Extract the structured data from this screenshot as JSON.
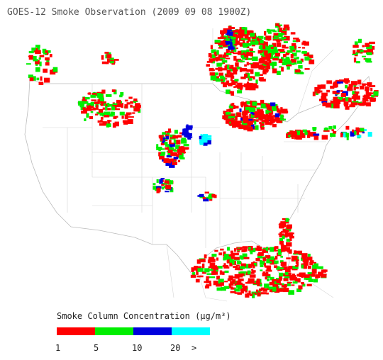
{
  "header": {
    "title": "GOES-12 Smoke Observation (2009 09 08  1900Z)"
  },
  "legend": {
    "title": "Smoke Column Concentration (μg/m³)",
    "colors": [
      "#ff0000",
      "#00ee00",
      "#0000dd",
      "#00ffff"
    ],
    "labels": [
      "1",
      "5",
      "10",
      "20",
      ">"
    ]
  }
}
